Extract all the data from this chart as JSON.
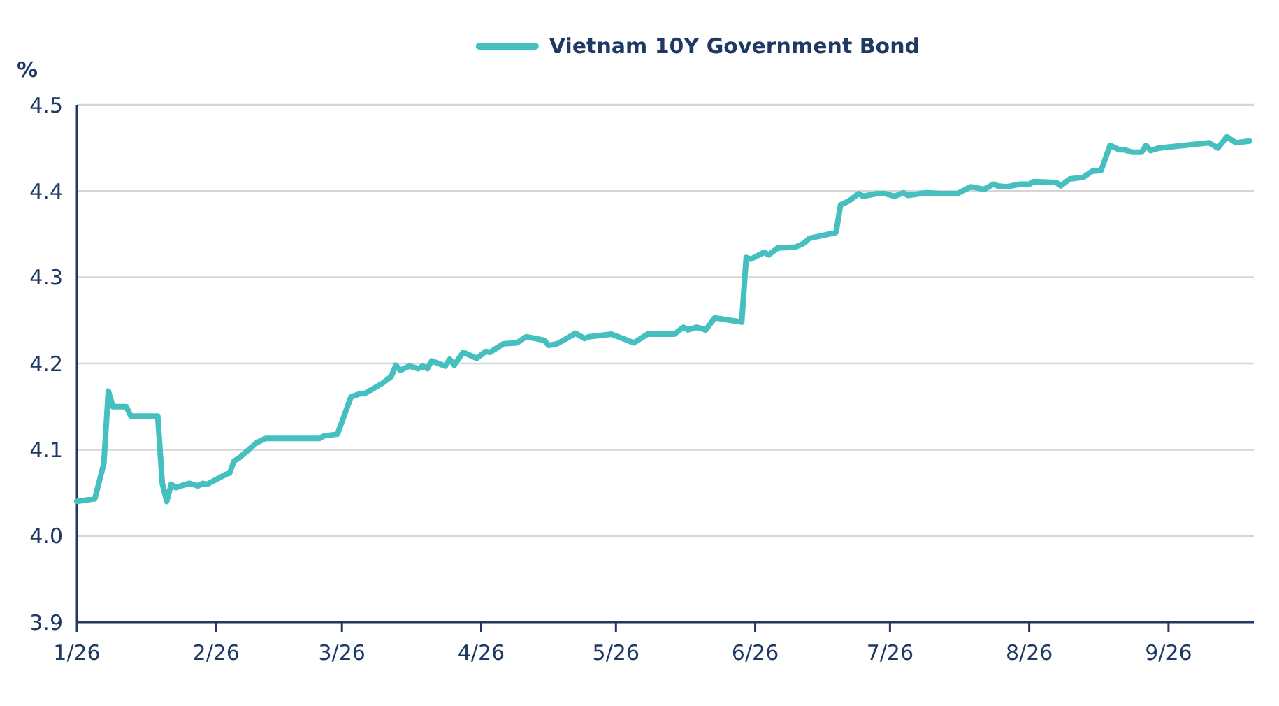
{
  "chart_data": {
    "type": "line",
    "ylabel": "%",
    "legend": "top",
    "grid": "y",
    "line_style": "solid",
    "marker": "none",
    "xlim": [
      "2026-01-01",
      "2026-09-20"
    ],
    "xticks": [
      {
        "value": "2026-01-01",
        "label": "1/26"
      },
      {
        "value": "2026-02-01",
        "label": "2/26"
      },
      {
        "value": "2026-03-01",
        "label": "3/26"
      },
      {
        "value": "2026-04-01",
        "label": "4/26"
      },
      {
        "value": "2026-05-01",
        "label": "5/26"
      },
      {
        "value": "2026-06-01",
        "label": "6/26"
      },
      {
        "value": "2026-07-01",
        "label": "7/26"
      },
      {
        "value": "2026-08-01",
        "label": "8/26"
      },
      {
        "value": "2026-09-01",
        "label": "9/26"
      }
    ],
    "ylim": [
      3.9,
      4.5
    ],
    "yticks": [
      {
        "value": 3.9,
        "label": "3.9"
      },
      {
        "value": 4.0,
        "label": "4.0"
      },
      {
        "value": 4.1,
        "label": "4.1"
      },
      {
        "value": 4.2,
        "label": "4.2"
      },
      {
        "value": 4.3,
        "label": "4.3"
      },
      {
        "value": 4.4,
        "label": "4.4"
      },
      {
        "value": 4.5,
        "label": "4.5"
      }
    ],
    "x": [
      "2026-01-01",
      "2026-01-05",
      "2026-01-07",
      "2026-01-08",
      "2026-01-09",
      "2026-01-12",
      "2026-01-13",
      "2026-01-19",
      "2026-01-20",
      "2026-01-21",
      "2026-01-22",
      "2026-01-23",
      "2026-01-26",
      "2026-01-28",
      "2026-01-29",
      "2026-01-30",
      "2026-02-03",
      "2026-02-04",
      "2026-02-05",
      "2026-02-06",
      "2026-02-10",
      "2026-02-12",
      "2026-02-24",
      "2026-02-25",
      "2026-02-28",
      "2026-03-03",
      "2026-03-05",
      "2026-03-06",
      "2026-03-10",
      "2026-03-12",
      "2026-03-13",
      "2026-03-14",
      "2026-03-16",
      "2026-03-18",
      "2026-03-19",
      "2026-03-20",
      "2026-03-21",
      "2026-03-24",
      "2026-03-25",
      "2026-03-26",
      "2026-03-28",
      "2026-03-31",
      "2026-04-02",
      "2026-04-03",
      "2026-04-06",
      "2026-04-09",
      "2026-04-11",
      "2026-04-15",
      "2026-04-16",
      "2026-04-18",
      "2026-04-22",
      "2026-04-24",
      "2026-04-25",
      "2026-04-30",
      "2026-05-05",
      "2026-05-08",
      "2026-05-14",
      "2026-05-16",
      "2026-05-17",
      "2026-05-19",
      "2026-05-21",
      "2026-05-23",
      "2026-05-29",
      "2026-05-30",
      "2026-05-31",
      "2026-06-03",
      "2026-06-04",
      "2026-06-06",
      "2026-06-10",
      "2026-06-12",
      "2026-06-13",
      "2026-06-19",
      "2026-06-20",
      "2026-06-22",
      "2026-06-24",
      "2026-06-25",
      "2026-06-28",
      "2026-06-30",
      "2026-07-02",
      "2026-07-04",
      "2026-07-05",
      "2026-07-09",
      "2026-07-12",
      "2026-07-16",
      "2026-07-19",
      "2026-07-22",
      "2026-07-24",
      "2026-07-25",
      "2026-07-27",
      "2026-07-30",
      "2026-08-01",
      "2026-08-02",
      "2026-08-07",
      "2026-08-08",
      "2026-08-10",
      "2026-08-13",
      "2026-08-15",
      "2026-08-17",
      "2026-08-19",
      "2026-08-21",
      "2026-08-22",
      "2026-08-24",
      "2026-08-26",
      "2026-08-27",
      "2026-08-28",
      "2026-08-30",
      "2026-09-10",
      "2026-09-12",
      "2026-09-14",
      "2026-09-16",
      "2026-09-19"
    ],
    "series": [
      {
        "name": "Vietnam 10Y Government Bond",
        "color": "#45bfbf",
        "values": [
          4.04,
          4.043,
          4.084,
          4.168,
          4.15,
          4.15,
          4.139,
          4.139,
          4.061,
          4.04,
          4.06,
          4.056,
          4.061,
          4.058,
          4.061,
          4.06,
          4.071,
          4.073,
          4.087,
          4.09,
          4.108,
          4.113,
          4.113,
          4.116,
          4.118,
          4.161,
          4.165,
          4.165,
          4.177,
          4.185,
          4.198,
          4.192,
          4.197,
          4.194,
          4.197,
          4.194,
          4.203,
          4.197,
          4.205,
          4.198,
          4.213,
          4.206,
          4.214,
          4.213,
          4.223,
          4.224,
          4.231,
          4.227,
          4.221,
          4.223,
          4.235,
          4.229,
          4.231,
          4.234,
          4.224,
          4.234,
          4.234,
          4.242,
          4.239,
          4.242,
          4.239,
          4.253,
          4.248,
          4.323,
          4.321,
          4.329,
          4.326,
          4.334,
          4.335,
          4.34,
          4.345,
          4.352,
          4.384,
          4.389,
          4.397,
          4.394,
          4.397,
          4.397,
          4.394,
          4.398,
          4.395,
          4.398,
          4.397,
          4.397,
          4.405,
          4.402,
          4.408,
          4.406,
          4.405,
          4.408,
          4.408,
          4.411,
          4.41,
          4.406,
          4.414,
          4.416,
          4.423,
          4.424,
          4.453,
          4.448,
          4.448,
          4.445,
          4.445,
          4.453,
          4.447,
          4.45,
          4.456,
          4.45,
          4.463,
          4.456,
          4.458
        ]
      }
    ]
  }
}
